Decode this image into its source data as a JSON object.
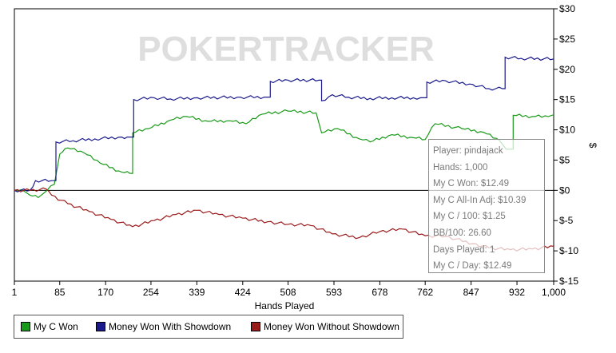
{
  "chart_data": {
    "type": "line",
    "xlabel": "Hands Played",
    "ylabel": "$",
    "watermark": "POKERTRACKER",
    "xlim": [
      1,
      1000
    ],
    "ylim": [
      -15,
      30
    ],
    "x_ticks": [
      "1",
      "85",
      "170",
      "254",
      "339",
      "424",
      "508",
      "593",
      "678",
      "762",
      "847",
      "932",
      "1,000"
    ],
    "x_tick_values": [
      1,
      85,
      170,
      254,
      339,
      424,
      508,
      593,
      678,
      762,
      847,
      932,
      1000
    ],
    "y_ticks": [
      "$30",
      "$25",
      "$20",
      "$15",
      "$10",
      "$5",
      "$0",
      "$-5",
      "$-10",
      "$-15"
    ],
    "y_tick_values": [
      30,
      25,
      20,
      15,
      10,
      5,
      0,
      -5,
      -10,
      -15
    ],
    "series": [
      {
        "name": "My C Won",
        "color": "#1a9a1a",
        "points": [
          [
            1,
            0
          ],
          [
            20,
            -0.2
          ],
          [
            30,
            -0.8
          ],
          [
            45,
            -1.2
          ],
          [
            55,
            -0.5
          ],
          [
            75,
            1
          ],
          [
            85,
            6
          ],
          [
            100,
            7
          ],
          [
            130,
            6.2
          ],
          [
            160,
            4.5
          ],
          [
            200,
            3
          ],
          [
            215,
            2.8
          ],
          [
            220,
            9.5
          ],
          [
            250,
            10.2
          ],
          [
            290,
            11.6
          ],
          [
            320,
            12.2
          ],
          [
            360,
            11.4
          ],
          [
            400,
            11.5
          ],
          [
            430,
            11
          ],
          [
            460,
            12.6
          ],
          [
            508,
            13.1
          ],
          [
            560,
            12.8
          ],
          [
            570,
            9.5
          ],
          [
            600,
            10.2
          ],
          [
            640,
            8.5
          ],
          [
            660,
            8
          ],
          [
            700,
            9.2
          ],
          [
            740,
            8.7
          ],
          [
            762,
            8.4
          ],
          [
            780,
            11
          ],
          [
            830,
            10.2
          ],
          [
            870,
            9.6
          ],
          [
            900,
            8.2
          ],
          [
            912,
            6.8
          ],
          [
            920,
            6.8
          ],
          [
            925,
            12.4
          ],
          [
            960,
            12.2
          ],
          [
            990,
            12.2
          ],
          [
            1000,
            12.49
          ]
        ]
      },
      {
        "name": "Money Won With Showdown",
        "color": "#1a1a8c",
        "points": [
          [
            1,
            0
          ],
          [
            30,
            0
          ],
          [
            40,
            1.6
          ],
          [
            70,
            1.6
          ],
          [
            78,
            8
          ],
          [
            110,
            8.2
          ],
          [
            150,
            8.5
          ],
          [
            200,
            8.8
          ],
          [
            215,
            8.8
          ],
          [
            222,
            15
          ],
          [
            260,
            15.3
          ],
          [
            290,
            15.1
          ],
          [
            340,
            15.3
          ],
          [
            420,
            15.4
          ],
          [
            470,
            15.4
          ],
          [
            475,
            18
          ],
          [
            508,
            18.2
          ],
          [
            565,
            18.2
          ],
          [
            570,
            14.8
          ],
          [
            590,
            15.8
          ],
          [
            620,
            15.4
          ],
          [
            660,
            15.2
          ],
          [
            700,
            15.3
          ],
          [
            740,
            15.3
          ],
          [
            760,
            15.3
          ],
          [
            765,
            17.9
          ],
          [
            800,
            18.1
          ],
          [
            850,
            17.5
          ],
          [
            880,
            16.8
          ],
          [
            905,
            16.8
          ],
          [
            910,
            22
          ],
          [
            940,
            21.8
          ],
          [
            1000,
            21.7
          ]
        ]
      },
      {
        "name": "Money Won Without Showdown",
        "color": "#9a1a1a",
        "points": [
          [
            1,
            0
          ],
          [
            30,
            0
          ],
          [
            60,
            0.2
          ],
          [
            70,
            -0.8
          ],
          [
            100,
            -2.2
          ],
          [
            140,
            -3.5
          ],
          [
            180,
            -4.8
          ],
          [
            220,
            -6
          ],
          [
            260,
            -5
          ],
          [
            300,
            -4
          ],
          [
            339,
            -3.3
          ],
          [
            380,
            -4
          ],
          [
            424,
            -4.6
          ],
          [
            470,
            -5.2
          ],
          [
            508,
            -5.6
          ],
          [
            550,
            -5.8
          ],
          [
            590,
            -7.2
          ],
          [
            640,
            -7.8
          ],
          [
            678,
            -6.8
          ],
          [
            720,
            -6.4
          ],
          [
            762,
            -7.5
          ],
          [
            800,
            -7.6
          ],
          [
            850,
            -8.8
          ],
          [
            880,
            -9.5
          ],
          [
            920,
            -9.8
          ],
          [
            960,
            -9.7
          ],
          [
            1000,
            -9.24
          ]
        ]
      }
    ]
  },
  "legend": {
    "items": [
      {
        "label": "My C Won",
        "color": "#1a9a1a"
      },
      {
        "label": "Money Won With Showdown",
        "color": "#1a1a8c"
      },
      {
        "label": "Money Won Without Showdown",
        "color": "#9a1a1a"
      }
    ]
  },
  "tooltip": {
    "lines": [
      "Player: pindajack",
      "Hands: 1,000",
      "My C Won: $12.49",
      "My C All-In Adj: $10.39",
      "My C / 100: $1.25",
      "BB/100: 26.60",
      "Days Played: 1",
      "My C / Day: $12.49"
    ]
  }
}
